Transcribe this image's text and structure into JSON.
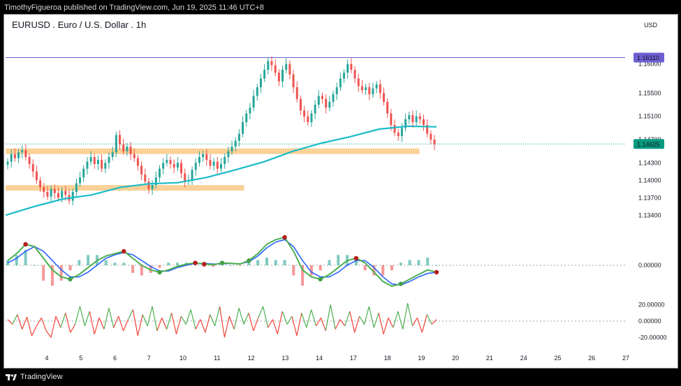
{
  "header": {
    "text": "TimothyFigueroa published on TradingView.com, Jun 19, 2025 11:46 UTC+8"
  },
  "footer": {
    "brand": "TradingView"
  },
  "chart_data": {
    "type": "candlestick",
    "title": "EURUSD . Euro / U.S. Dollar . 1h",
    "currency": "USD",
    "price_axis": {
      "ticks": [
        "1.16000",
        "1.15500",
        "1.15100",
        "1.14700",
        "1.14300",
        "1.14000",
        "1.13700",
        "1.13400"
      ],
      "range": [
        1.132,
        1.165
      ]
    },
    "date_axis": {
      "ticks": [
        "4",
        "5",
        "6",
        "7",
        "10",
        "11",
        "12",
        "13",
        "14",
        "17",
        "18",
        "19",
        "20",
        "21",
        "24",
        "25",
        "26",
        "27"
      ]
    },
    "price_labels": {
      "resistance": "1.16110",
      "last": "1.14625"
    },
    "colors": {
      "up": "#26a69a",
      "down": "#ef5350",
      "ma": "#19bcc8",
      "zone": "#fbd197",
      "resistance": "#6e5fd3",
      "last": "#089981"
    },
    "closes": [
      1.1432,
      1.1445,
      1.1438,
      1.1448,
      1.1452,
      1.144,
      1.1428,
      1.1415,
      1.14,
      1.1388,
      1.138,
      1.1372,
      1.1385,
      1.1378,
      1.137,
      1.1382,
      1.1375,
      1.1365,
      1.138,
      1.1395,
      1.1405,
      1.142,
      1.1432,
      1.144,
      1.1428,
      1.1435,
      1.142,
      1.143,
      1.144,
      1.1448,
      1.1478,
      1.1462,
      1.145,
      1.1458,
      1.1445,
      1.1438,
      1.1425,
      1.141,
      1.1398,
      1.1385,
      1.1392,
      1.1405,
      1.142,
      1.143,
      1.1435,
      1.1428,
      1.1422,
      1.143,
      1.1412,
      1.1398,
      1.14,
      1.1418,
      1.143,
      1.144,
      1.1445,
      1.1435,
      1.1425,
      1.1432,
      1.142,
      1.1428,
      1.144,
      1.145,
      1.1458,
      1.1468,
      1.148,
      1.15,
      1.1515,
      1.1525,
      1.1545,
      1.156,
      1.1575,
      1.159,
      1.1605,
      1.1598,
      1.1585,
      1.157,
      1.159,
      1.16,
      1.1582,
      1.156,
      1.154,
      1.152,
      1.151,
      1.15,
      1.1515,
      1.153,
      1.1545,
      1.154,
      1.1525,
      1.1535,
      1.1548,
      1.156,
      1.1575,
      1.1585,
      1.16,
      1.159,
      1.1575,
      1.1562,
      1.1555,
      1.156,
      1.1548,
      1.1558,
      1.1565,
      1.155,
      1.1535,
      1.1515,
      1.1495,
      1.1482,
      1.1476,
      1.149,
      1.1505,
      1.1512,
      1.15,
      1.151,
      1.1505,
      1.1495,
      1.148,
      1.147,
      1.1462
    ],
    "ma_series": [
      1.134,
      1.1355,
      1.1368,
      1.1375,
      1.1388,
      1.1394,
      1.1396,
      1.1405,
      1.1418,
      1.1432,
      1.145,
      1.1464,
      1.1475,
      1.1488,
      1.1493,
      1.1492
    ],
    "zones": [
      {
        "price": 1.1387,
        "start": 0.0,
        "end": 0.385
      },
      {
        "price": 1.145,
        "start": 0.0,
        "end": 0.668
      }
    ],
    "resistance": 1.1611,
    "last_price": 1.14625,
    "oscillator": {
      "range": [
        -1.2,
        1.2
      ],
      "zero_label": "0.00000",
      "fast": [
        0.2,
        0.5,
        0.9,
        0.8,
        0.3,
        -0.2,
        -0.5,
        -0.6,
        -0.4,
        -0.1,
        0.2,
        0.4,
        0.5,
        0.6,
        0.3,
        0.0,
        -0.2,
        -0.3,
        -0.2,
        -0.05,
        0.05,
        0.1,
        0.05,
        0.02,
        0.1,
        0.08,
        0.05,
        0.2,
        0.5,
        0.9,
        1.1,
        1.2,
        0.6,
        -0.2,
        -0.5,
        -0.6,
        -0.4,
        -0.1,
        0.2,
        0.3,
        0.1,
        -0.3,
        -0.7,
        -0.9,
        -0.8,
        -0.6,
        -0.4,
        -0.2,
        -0.3
      ],
      "slow": [
        0.1,
        0.3,
        0.6,
        0.8,
        0.6,
        0.2,
        -0.2,
        -0.5,
        -0.5,
        -0.3,
        0.0,
        0.3,
        0.45,
        0.55,
        0.45,
        0.2,
        -0.05,
        -0.25,
        -0.25,
        -0.1,
        0.0,
        0.08,
        0.08,
        0.05,
        0.06,
        0.08,
        0.06,
        0.15,
        0.4,
        0.75,
        1.0,
        1.1,
        0.8,
        0.2,
        -0.3,
        -0.5,
        -0.5,
        -0.3,
        0.0,
        0.2,
        0.2,
        -0.1,
        -0.5,
        -0.8,
        -0.85,
        -0.7,
        -0.5,
        -0.35,
        -0.3
      ],
      "dots": [
        {
          "i": 2,
          "c": "r"
        },
        {
          "i": 7,
          "c": "g"
        },
        {
          "i": 13,
          "c": "r"
        },
        {
          "i": 17,
          "c": "g"
        },
        {
          "i": 21,
          "c": "r"
        },
        {
          "i": 22,
          "c": "r"
        },
        {
          "i": 24,
          "c": "g"
        },
        {
          "i": 27,
          "c": "g"
        },
        {
          "i": 31,
          "c": "r"
        },
        {
          "i": 35,
          "c": "g"
        },
        {
          "i": 39,
          "c": "r"
        },
        {
          "i": 44,
          "c": "g"
        },
        {
          "i": 48,
          "c": "r"
        }
      ]
    },
    "rsi_like": {
      "ticks": [
        "20.00000",
        "0.00000",
        "-20.00000"
      ],
      "range": [
        -30,
        30
      ],
      "values": [
        2,
        -4,
        8,
        -10,
        5,
        -18,
        -6,
        4,
        -12,
        -20,
        6,
        -8,
        10,
        -14,
        -4,
        18,
        -6,
        12,
        -16,
        4,
        -10,
        16,
        -8,
        6,
        -12,
        2,
        14,
        -18,
        8,
        -6,
        18,
        -12,
        4,
        -10,
        10,
        -16,
        6,
        -4,
        14,
        -10,
        2,
        -14,
        8,
        -6,
        18,
        -20,
        6,
        -10,
        16,
        -4,
        10,
        -12,
        4,
        18,
        -8,
        2,
        -16,
        12,
        -4,
        6,
        -18,
        10,
        -8,
        14,
        -6,
        4,
        -12,
        20,
        -10,
        2,
        -6,
        12,
        -14,
        6,
        -4,
        18,
        -8,
        10,
        -16,
        4,
        -8,
        12,
        -10,
        22,
        -6,
        4,
        -14,
        8,
        -4,
        2
      ]
    }
  }
}
